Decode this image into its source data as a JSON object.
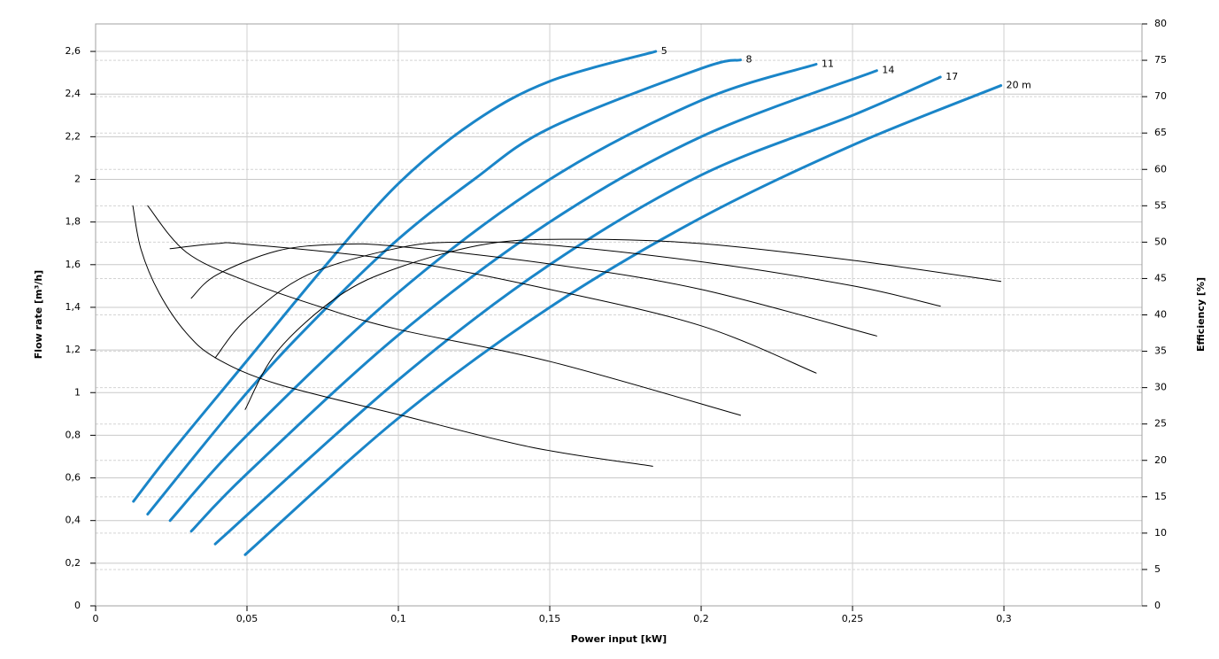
{
  "chart_data": {
    "type": "line",
    "xlabel": "Power input [kW]",
    "ylabel": "Flow rate [m³/h]",
    "y2label": "Efficiency [%]",
    "xlim": [
      0,
      0.3456
    ],
    "ylim": [
      0,
      2.729
    ],
    "y2lim": [
      0,
      80
    ],
    "grid": true,
    "xticks": [
      0,
      {
        "value": 0.05,
        "label": "0,05"
      },
      {
        "value": 0.1,
        "label": "0,1"
      },
      {
        "value": 0.15,
        "label": "0,15"
      },
      {
        "value": 0.2,
        "label": "0,2"
      },
      {
        "value": 0.25,
        "label": "0,25"
      },
      {
        "value": 0.3,
        "label": "0,3"
      }
    ],
    "yticks": [
      0,
      {
        "value": 0.2,
        "label": "0,2"
      },
      {
        "value": 0.4,
        "label": "0,4"
      },
      {
        "value": 0.6,
        "label": "0,6"
      },
      {
        "value": 0.8,
        "label": "0,8"
      },
      1,
      {
        "value": 1.2,
        "label": "1,2"
      },
      {
        "value": 1.4,
        "label": "1,4"
      },
      {
        "value": 1.6,
        "label": "1,6"
      },
      {
        "value": 1.8,
        "label": "1,8"
      },
      2,
      {
        "value": 2.2,
        "label": "2,2"
      },
      {
        "value": 2.4,
        "label": "2,4"
      },
      {
        "value": 2.6,
        "label": "2,6"
      }
    ],
    "y2ticks": [
      0,
      5,
      10,
      15,
      20,
      25,
      30,
      35,
      40,
      45,
      50,
      55,
      60,
      65,
      70,
      75,
      80
    ],
    "series": [
      {
        "name": "5",
        "color": "#1a85c8",
        "x": [
          0.0125,
          0.025,
          0.05,
          0.075,
          0.1,
          0.125,
          0.15,
          0.185
        ],
        "values": [
          0.49,
          0.72,
          1.15,
          1.58,
          1.98,
          2.27,
          2.46,
          2.6
        ]
      },
      {
        "name": "8",
        "color": "#1a85c8",
        "x": [
          0.0172,
          0.05,
          0.075,
          0.1,
          0.125,
          0.15,
          0.2,
          0.213
        ],
        "values": [
          0.43,
          1.0,
          1.38,
          1.72,
          2.0,
          2.24,
          2.52,
          2.56
        ]
      },
      {
        "name": "11",
        "color": "#1a85c8",
        "x": [
          0.0246,
          0.05,
          0.1,
          0.15,
          0.2,
          0.238
        ],
        "values": [
          0.4,
          0.8,
          1.47,
          2.0,
          2.37,
          2.54
        ]
      },
      {
        "name": "14",
        "color": "#1a85c8",
        "x": [
          0.0316,
          0.05,
          0.1,
          0.15,
          0.2,
          0.258
        ],
        "values": [
          0.35,
          0.62,
          1.27,
          1.8,
          2.2,
          2.51
        ]
      },
      {
        "name": "17",
        "color": "#1a85c8",
        "x": [
          0.0395,
          0.1,
          0.15,
          0.2,
          0.25,
          0.279
        ],
        "values": [
          0.29,
          1.06,
          1.6,
          2.02,
          2.3,
          2.48
        ]
      },
      {
        "name": "20 m",
        "color": "#1a85c8",
        "x": [
          0.0494,
          0.1,
          0.15,
          0.2,
          0.25,
          0.299
        ],
        "values": [
          0.24,
          0.88,
          1.4,
          1.82,
          2.16,
          2.44
        ]
      },
      {
        "color": "#000000",
        "axis": "y2",
        "x": [
          0.0123,
          0.015,
          0.021,
          0.03,
          0.04,
          0.06,
          0.1,
          0.144,
          0.184
        ],
        "values": [
          55,
          49,
          43,
          37.5,
          34,
          30.5,
          26.3,
          21.8,
          19.2
        ]
      },
      {
        "color": "#000000",
        "axis": "y2",
        "x": [
          0.0172,
          0.03,
          0.05,
          0.075,
          0.1,
          0.15,
          0.213
        ],
        "values": [
          55,
          48.6,
          44.6,
          41,
          38,
          33.6,
          26.2
        ]
      },
      {
        "color": "#000000",
        "axis": "y2",
        "x": [
          0.0246,
          0.04,
          0.05,
          0.1,
          0.15,
          0.2,
          0.238
        ],
        "values": [
          49.1,
          49.8,
          49.7,
          47.5,
          43.5,
          38.5,
          32
        ]
      },
      {
        "color": "#000000",
        "axis": "y2",
        "x": [
          0.0316,
          0.04,
          0.06,
          0.08,
          0.1,
          0.15,
          0.2,
          0.258
        ],
        "values": [
          42.3,
          45.5,
          48.8,
          49.7,
          49.4,
          47,
          43.5,
          37.1
        ]
      },
      {
        "color": "#000000",
        "axis": "y2",
        "x": [
          0.0395,
          0.05,
          0.07,
          0.1,
          0.12,
          0.15,
          0.2,
          0.25,
          0.279
        ],
        "values": [
          34.1,
          39.5,
          45.5,
          49.2,
          50,
          49.6,
          47.3,
          44,
          41.2
        ]
      },
      {
        "color": "#000000",
        "axis": "y2",
        "x": [
          0.0494,
          0.06,
          0.08,
          0.1,
          0.13,
          0.16,
          0.2,
          0.25,
          0.299
        ],
        "values": [
          27,
          35,
          42.5,
          46.5,
          49.8,
          50.4,
          49.8,
          47.5,
          44.6
        ]
      }
    ]
  }
}
